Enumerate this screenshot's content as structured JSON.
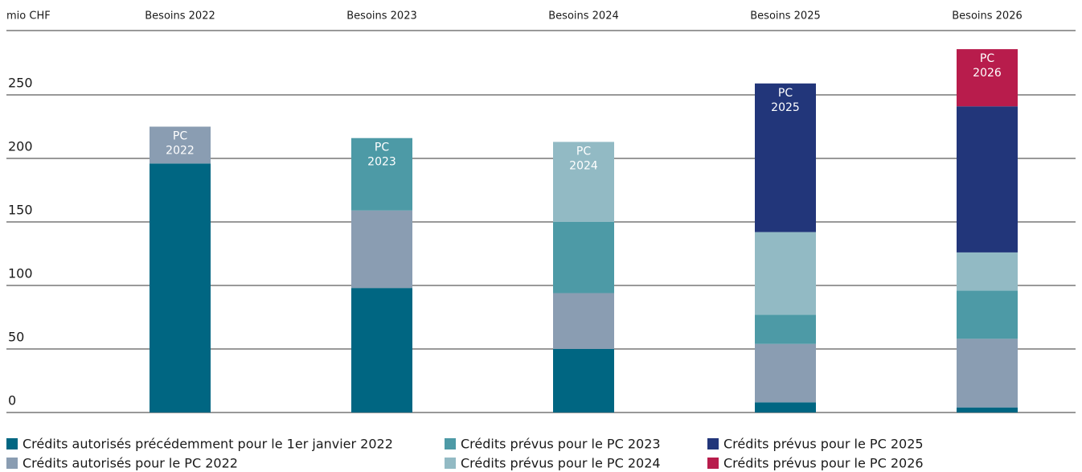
{
  "chart_data": {
    "type": "stacked_bar",
    "unit_label": "mio CHF",
    "categories": [
      "Besoins 2022",
      "Besoins 2023",
      "Besoins 2024",
      "Besoins 2025",
      "Besoins 2026"
    ],
    "ylim": [
      0,
      300
    ],
    "yticks": [
      0,
      50,
      100,
      150,
      200,
      250
    ],
    "grid": true,
    "series": [
      {
        "name": "Crédits autorisés précédemment pour le 1er janvier 2022",
        "color": "#006682",
        "values": [
          196,
          98,
          50,
          8,
          4
        ]
      },
      {
        "name": "Crédits autorisés pour le PC 2022",
        "color": "#8a9db2",
        "values": [
          29,
          61,
          44,
          46,
          54
        ],
        "label_lines": [
          "PC",
          "2022"
        ]
      },
      {
        "name": "Crédits prévus pour le PC 2023",
        "color": "#4d9aa6",
        "values": [
          null,
          57,
          56,
          23,
          38
        ],
        "label_lines": [
          "PC",
          "2023"
        ]
      },
      {
        "name": "Crédits prévus pour le PC 2024",
        "color": "#92bac4",
        "values": [
          null,
          null,
          63,
          65,
          30
        ],
        "label_lines": [
          "PC",
          "2024"
        ]
      },
      {
        "name": "Crédits prévus pour le PC 2025",
        "color": "#22367a",
        "values": [
          null,
          null,
          null,
          117,
          115
        ],
        "label_lines": [
          "PC",
          "2025"
        ]
      },
      {
        "name": "Crédits prévus pour le PC 2026",
        "color": "#b81c4c",
        "values": [
          null,
          null,
          null,
          null,
          45
        ],
        "label_lines": [
          "PC",
          "2026"
        ]
      }
    ]
  }
}
